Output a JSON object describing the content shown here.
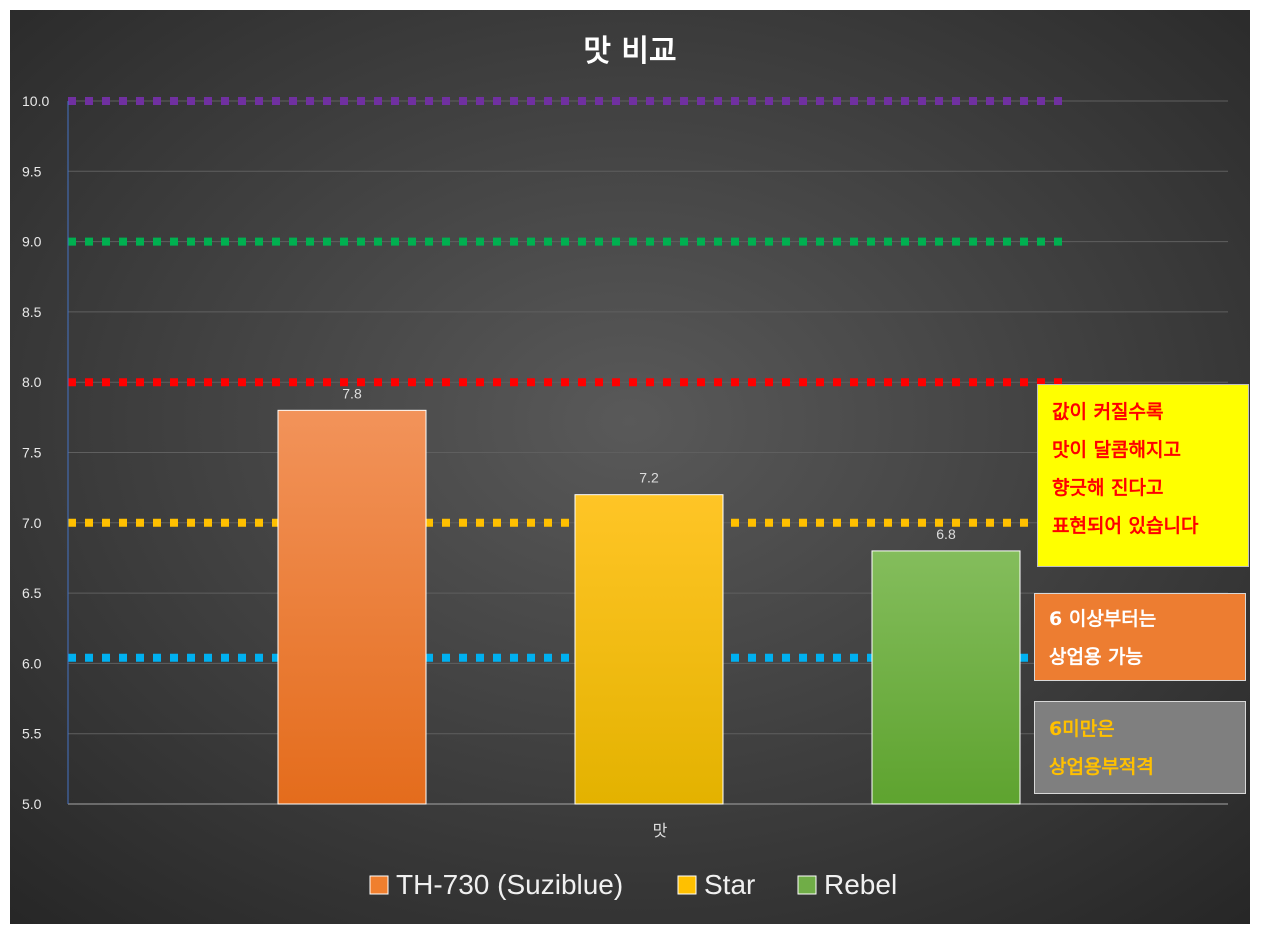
{
  "chart_data": {
    "type": "bar",
    "title": "맛 비교",
    "categories": [
      "맛"
    ],
    "series": [
      {
        "name": "TH-730 (Suziblue)",
        "values": [
          7.8
        ],
        "color": "#f07f2e"
      },
      {
        "name": "Star",
        "values": [
          7.2
        ],
        "color": "#ffc000"
      },
      {
        "name": "Rebel",
        "values": [
          6.8
        ],
        "color": "#70ad47"
      }
    ],
    "data_labels": [
      "7.8",
      "7.2",
      "6.8"
    ],
    "ylim": [
      5.0,
      10.0
    ],
    "yticks": [
      "5.0",
      "5.5",
      "6.0",
      "6.5",
      "7.0",
      "7.5",
      "8.0",
      "8.5",
      "9.0",
      "9.5",
      "10.0"
    ],
    "grid": true,
    "legend_position": "bottom",
    "reference_lines": [
      {
        "value": 10.0,
        "color": "#7030a0"
      },
      {
        "value": 9.0,
        "color": "#00b050"
      },
      {
        "value": 8.0,
        "color": "#ff0000"
      },
      {
        "value": 7.0,
        "color": "#ffc000"
      },
      {
        "value": 6.04,
        "color": "#00b0f0"
      }
    ]
  },
  "annotations": {
    "sweet": {
      "lines": [
        "값이 커질수록",
        "맛이 달콤해지고",
        "향긋해 진다고",
        "표현되어 있습니다"
      ]
    },
    "commercial_ok": {
      "lines": [
        "6 이상부터는",
        "상업용 가능"
      ]
    },
    "commercial_bad": {
      "lines": [
        "6미만은",
        "상업용부적격"
      ]
    }
  }
}
